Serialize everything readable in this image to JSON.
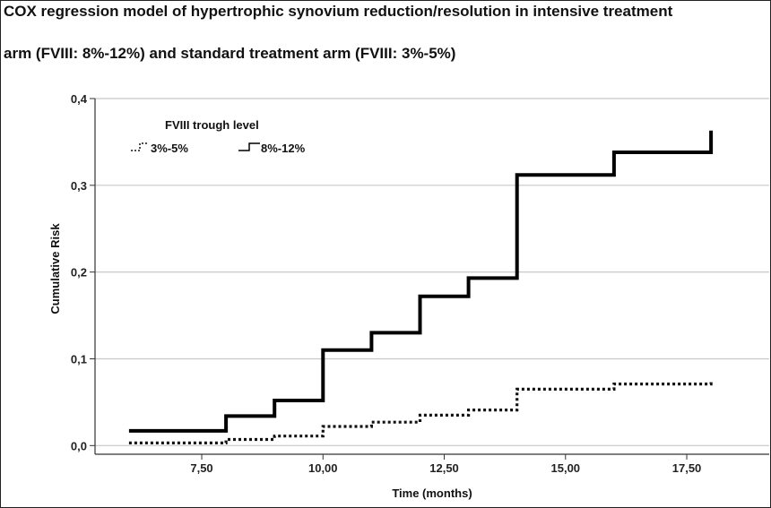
{
  "chart_data": {
    "type": "line",
    "subtype": "step",
    "title": "COX regression model of hypertrophic synovium reduction/resolution in intensive treatment",
    "subtitle": "arm (FVIII: 8%-12%) and standard treatment arm (FVIII: 3%-5%)",
    "xlabel": "Time (months)",
    "ylabel": "Cumulative Risk",
    "xlim": [
      5.3,
      19.2
    ],
    "ylim": [
      -0.01,
      0.4
    ],
    "x_ticks": [
      7.5,
      10,
      12.5,
      15,
      17.5
    ],
    "x_tick_labels": [
      "7,50",
      "10,00",
      "12,50",
      "15,00",
      "17,50"
    ],
    "y_ticks": [
      0,
      0.1,
      0.2,
      0.3,
      0.4
    ],
    "y_tick_labels": [
      "0,0",
      "0,1",
      "0,2",
      "0,3",
      "0,4"
    ],
    "grid": "horizontal",
    "legend": {
      "title": "FVIII trough level",
      "placement": "top-left"
    },
    "series": [
      {
        "name": "3%-5%",
        "style": "dotted",
        "color": "#111111",
        "x": [
          6,
          8,
          9,
          10,
          11,
          12,
          13,
          14,
          16,
          18
        ],
        "y": [
          0.003,
          0.007,
          0.011,
          0.022,
          0.027,
          0.035,
          0.041,
          0.065,
          0.071,
          0.076
        ]
      },
      {
        "name": "8%-12%",
        "style": "solid",
        "color": "#000000",
        "x": [
          6,
          8,
          9,
          10,
          11,
          12,
          13,
          14,
          16,
          18
        ],
        "y": [
          0.017,
          0.034,
          0.052,
          0.11,
          0.13,
          0.172,
          0.193,
          0.312,
          0.338,
          0.363
        ]
      }
    ]
  }
}
